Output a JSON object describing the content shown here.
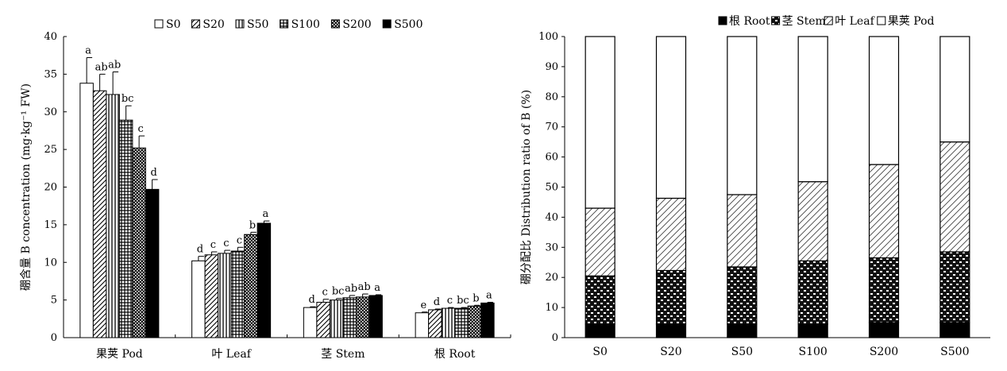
{
  "chart_data": [
    {
      "type": "bar",
      "title": "",
      "xlabel": "",
      "ylabel": "硼含量 B concentration (mg·kg⁻¹ FW)",
      "ylim": [
        0,
        40
      ],
      "yticks": [
        0,
        5,
        10,
        15,
        20,
        25,
        30,
        35,
        40
      ],
      "grid": false,
      "legend_position": "top",
      "categories": [
        "果荚 Pod",
        "叶 Leaf",
        "茎 Stem",
        "根 Root"
      ],
      "series": [
        {
          "name": "S0",
          "pattern": "empty",
          "values": [
            33.8,
            10.2,
            4.0,
            3.3
          ],
          "errors": [
            3.4,
            0.6,
            0.1,
            0.1
          ],
          "labels": [
            "a",
            "d",
            "d",
            "e"
          ]
        },
        {
          "name": "S20",
          "pattern": "diagonal",
          "values": [
            32.8,
            11.0,
            4.7,
            3.7
          ],
          "errors": [
            2.2,
            0.4,
            0.4,
            0.1
          ],
          "labels": [
            "ab",
            "c",
            "c",
            "d"
          ]
        },
        {
          "name": "S50",
          "pattern": "vertical",
          "values": [
            32.3,
            11.2,
            5.0,
            3.9
          ],
          "errors": [
            3.0,
            0.4,
            0.2,
            0.1
          ],
          "labels": [
            "ab",
            "c",
            "bc",
            "c"
          ]
        },
        {
          "name": "S100",
          "pattern": "grid",
          "values": [
            28.9,
            11.5,
            5.3,
            3.9
          ],
          "errors": [
            1.9,
            0.5,
            0.3,
            0.1
          ],
          "labels": [
            "bc",
            "c",
            "ab",
            "bc"
          ]
        },
        {
          "name": "S200",
          "pattern": "dots",
          "values": [
            25.2,
            13.7,
            5.4,
            4.2
          ],
          "errors": [
            1.6,
            0.3,
            0.4,
            0.1
          ],
          "labels": [
            "c",
            "b",
            "ab",
            "b"
          ]
        },
        {
          "name": "S500",
          "pattern": "solid",
          "values": [
            19.7,
            15.2,
            5.6,
            4.6
          ],
          "errors": [
            1.3,
            0.3,
            0.1,
            0.1
          ],
          "labels": [
            "d",
            "a",
            "a",
            "a"
          ]
        }
      ]
    },
    {
      "type": "bar",
      "stacked": true,
      "title": "",
      "xlabel": "",
      "ylabel": "硼分配比 Distribution ratio of B (%)",
      "ylim": [
        0,
        100
      ],
      "yticks": [
        0,
        10,
        20,
        30,
        40,
        50,
        60,
        70,
        80,
        90,
        100
      ],
      "grid": false,
      "legend_position": "top-right",
      "categories": [
        "S0",
        "S20",
        "S50",
        "S100",
        "S200",
        "S500"
      ],
      "series": [
        {
          "name": "根 Root",
          "pattern": "solid",
          "values": [
            4.5,
            4.5,
            4.5,
            4.5,
            5.0,
            5.0
          ]
        },
        {
          "name": "茎 Stem",
          "pattern": "dots",
          "values": [
            16.0,
            17.8,
            19.0,
            21.0,
            21.5,
            23.5
          ]
        },
        {
          "name": "叶 Leaf",
          "pattern": "diagonal",
          "values": [
            22.5,
            24.0,
            24.0,
            26.3,
            31.0,
            36.5
          ]
        },
        {
          "name": "果荚 Pod",
          "pattern": "empty",
          "values": [
            57.0,
            53.7,
            52.5,
            48.2,
            42.5,
            35.0
          ]
        }
      ]
    }
  ]
}
